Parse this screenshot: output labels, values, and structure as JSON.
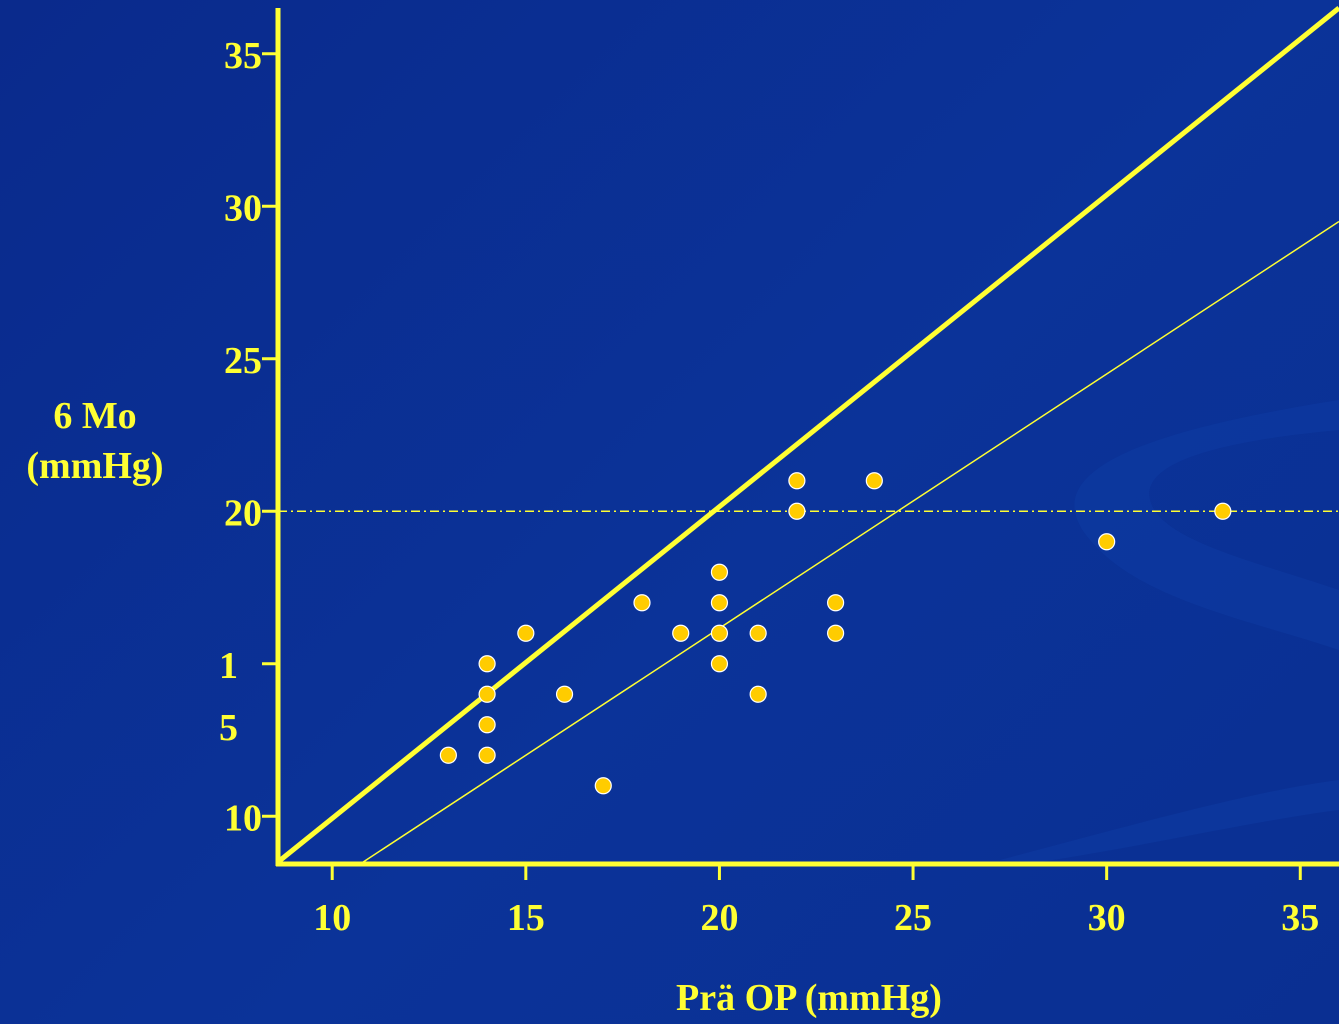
{
  "colors": {
    "background": "#0b3399",
    "foreground": "#ffff33",
    "point_fill": "#ffcc00",
    "point_outline": "#ffffff"
  },
  "chart_data": {
    "type": "scatter",
    "xlabel": "Prä OP (mmHg)",
    "ylabel_line1": "6 Mo",
    "ylabel_line2": "(mmHg)",
    "xlim": [
      8.6,
      36
    ],
    "ylim": [
      8.5,
      36.5
    ],
    "x_ticks": [
      10,
      15,
      20,
      25,
      30,
      35
    ],
    "x_tick_labels": [
      "10",
      "15",
      "20",
      "25",
      "30",
      "35"
    ],
    "y_ticks": [
      10,
      15,
      20,
      25,
      30,
      35
    ],
    "y_tick_labels": [
      "10",
      "1\n5",
      "20",
      "25",
      "30",
      "35"
    ],
    "grid": false,
    "points": [
      {
        "x": 13,
        "y": 12
      },
      {
        "x": 14,
        "y": 12
      },
      {
        "x": 14,
        "y": 13
      },
      {
        "x": 14,
        "y": 14
      },
      {
        "x": 14,
        "y": 15
      },
      {
        "x": 15,
        "y": 16
      },
      {
        "x": 16,
        "y": 14
      },
      {
        "x": 17,
        "y": 11
      },
      {
        "x": 18,
        "y": 17
      },
      {
        "x": 19,
        "y": 16
      },
      {
        "x": 20,
        "y": 15
      },
      {
        "x": 20,
        "y": 16
      },
      {
        "x": 20,
        "y": 17
      },
      {
        "x": 20,
        "y": 18
      },
      {
        "x": 21,
        "y": 14
      },
      {
        "x": 21,
        "y": 16
      },
      {
        "x": 22,
        "y": 20
      },
      {
        "x": 22,
        "y": 21
      },
      {
        "x": 23,
        "y": 16
      },
      {
        "x": 23,
        "y": 17
      },
      {
        "x": 24,
        "y": 21
      },
      {
        "x": 30,
        "y": 19
      },
      {
        "x": 33,
        "y": 20
      }
    ],
    "reference_lines": [
      {
        "kind": "identity",
        "from": [
          8.6,
          8.5
        ],
        "to": [
          36,
          36.5
        ],
        "style": "thick"
      },
      {
        "kind": "trend",
        "from": [
          10.8,
          8.5
        ],
        "to": [
          36,
          29.5
        ],
        "style": "thin"
      },
      {
        "kind": "threshold",
        "from": [
          8.6,
          20
        ],
        "to": [
          36,
          20
        ],
        "style": "dash-dot"
      }
    ]
  }
}
